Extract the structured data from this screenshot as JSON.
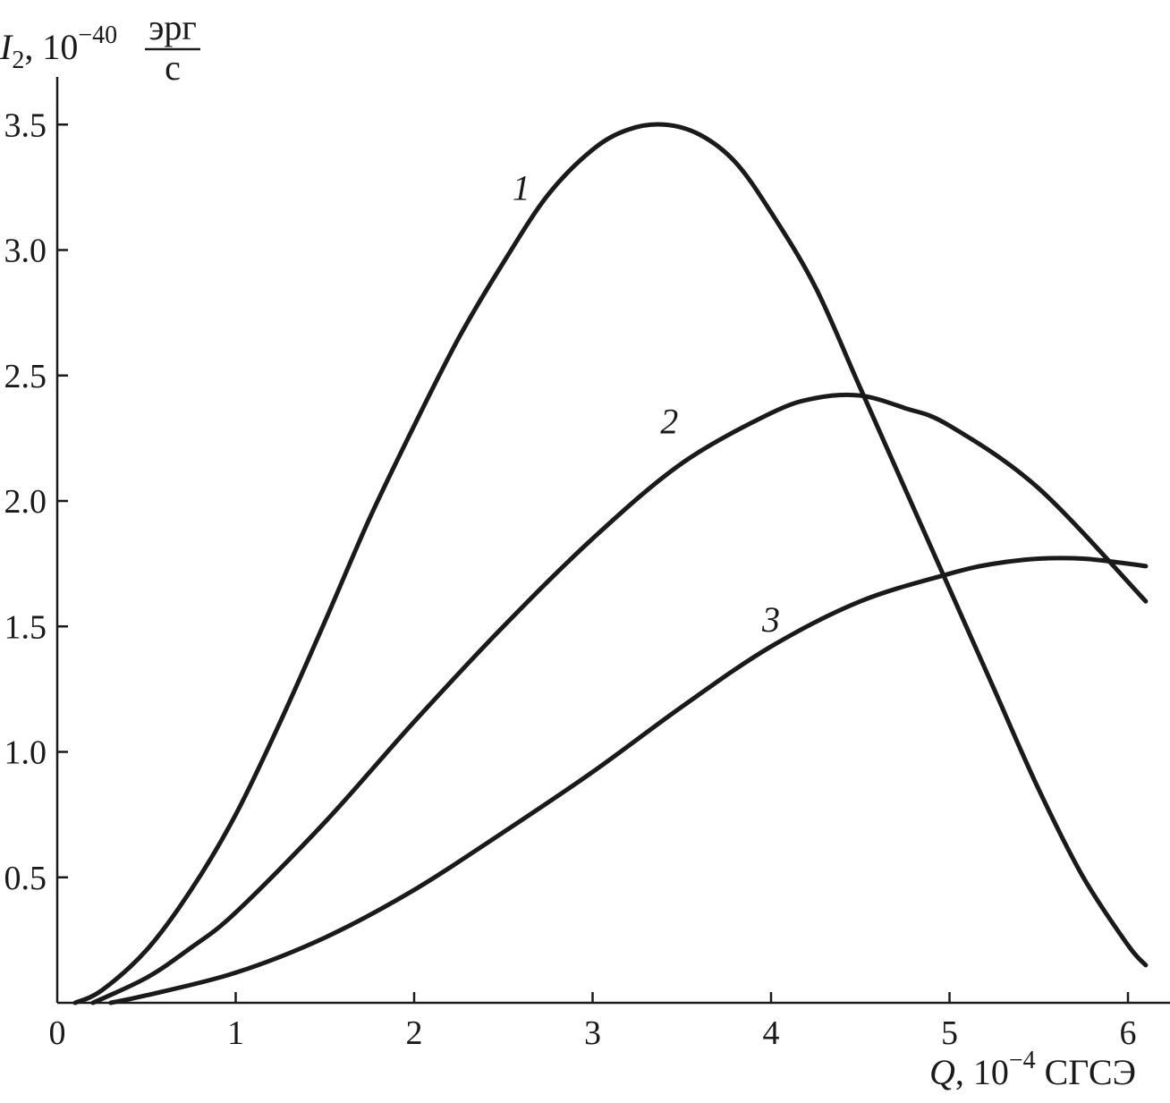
{
  "chart_data": {
    "type": "line",
    "xlabel": {
      "var": "Q",
      "rest": ", 10",
      "exp": "−4",
      "unit": " СГСЭ"
    },
    "ylabel": {
      "var": "I",
      "sub": "2",
      "rest": ", 10",
      "exp": "−40",
      "unit_num": "эрг",
      "unit_den": "с"
    },
    "xlim": [
      0,
      6.2
    ],
    "ylim": [
      0,
      3.7
    ],
    "xticks": [
      0,
      1,
      2,
      3,
      4,
      5,
      6
    ],
    "xtick_labels": [
      "0",
      "1",
      "2",
      "3",
      "4",
      "5",
      "6"
    ],
    "yticks": [
      0.5,
      1.0,
      1.5,
      2.0,
      2.5,
      3.0,
      3.5
    ],
    "ytick_labels": [
      "0.5",
      "1.0",
      "1.5",
      "2.0",
      "2.5",
      "3.0",
      "3.5"
    ],
    "grid": false,
    "line_color": "#1a1a1a",
    "series": [
      {
        "name": "1",
        "label_at": [
          2.55,
          3.2
        ],
        "x": [
          0.1,
          0.25,
          0.5,
          0.75,
          1.0,
          1.25,
          1.5,
          1.75,
          2.0,
          2.25,
          2.5,
          2.75,
          3.0,
          3.2,
          3.4,
          3.6,
          3.8,
          4.0,
          4.25,
          4.5,
          4.75,
          5.0,
          5.25,
          5.5,
          5.75,
          6.0,
          6.1
        ],
        "y": [
          0.0,
          0.05,
          0.21,
          0.45,
          0.75,
          1.12,
          1.52,
          1.93,
          2.3,
          2.65,
          2.95,
          3.22,
          3.4,
          3.48,
          3.5,
          3.46,
          3.35,
          3.15,
          2.85,
          2.45,
          2.05,
          1.65,
          1.25,
          0.85,
          0.5,
          0.23,
          0.15
        ]
      },
      {
        "name": "2",
        "label_at": [
          3.38,
          2.27
        ],
        "x": [
          0.2,
          0.5,
          0.75,
          1.0,
          1.5,
          2.0,
          2.5,
          3.0,
          3.5,
          4.0,
          4.25,
          4.5,
          4.75,
          5.0,
          5.5,
          6.1
        ],
        "y": [
          0.0,
          0.1,
          0.22,
          0.36,
          0.72,
          1.12,
          1.5,
          1.85,
          2.15,
          2.35,
          2.41,
          2.42,
          2.37,
          2.3,
          2.05,
          1.6
        ]
      },
      {
        "name": "3",
        "label_at": [
          3.95,
          1.48
        ],
        "x": [
          0.3,
          0.5,
          1.0,
          1.5,
          2.0,
          2.5,
          3.0,
          3.5,
          4.0,
          4.5,
          5.0,
          5.25,
          5.5,
          5.75,
          6.0,
          6.1
        ],
        "y": [
          0.0,
          0.03,
          0.12,
          0.26,
          0.45,
          0.68,
          0.92,
          1.18,
          1.42,
          1.6,
          1.71,
          1.75,
          1.77,
          1.77,
          1.75,
          1.74
        ]
      }
    ]
  }
}
